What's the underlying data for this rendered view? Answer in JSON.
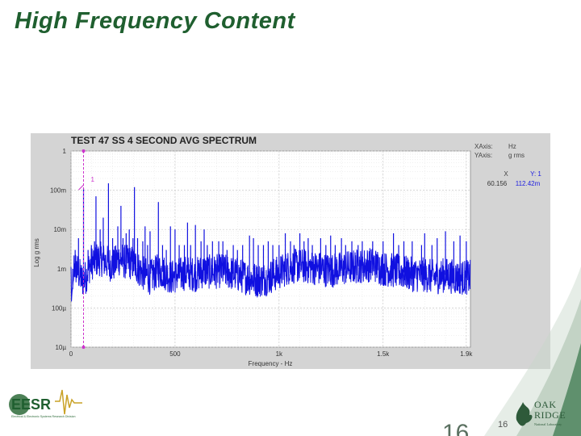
{
  "slide": {
    "title": "High Frequency Content",
    "page_number": "16",
    "page_number_large": "16"
  },
  "logos": {
    "left": {
      "name": "EESR",
      "subtitle": "Electrical & Electronic Systems Research Division",
      "icon": "eesr-logo-waveform"
    },
    "right": {
      "name_line1": "OAK",
      "name_line2": "RIDGE",
      "subtitle": "National Laboratory",
      "icon": "oak-leaf-logo"
    }
  },
  "colors": {
    "title": "#1f5f2f",
    "series": "#1010e0",
    "cursor": "#cc33cc",
    "panel": "#d4d4d4",
    "accent_swoosh": "#3d7a4f"
  },
  "chart_data": {
    "type": "line",
    "title": "TEST 47 SS 4 SECOND AVG SPECTRUM",
    "xlabel": "Frequency - Hz",
    "ylabel": "Log g rms",
    "xscale": "linear",
    "yscale": "log",
    "xlim": [
      0,
      1920
    ],
    "ylim": [
      1e-05,
      1
    ],
    "x_ticks": [
      0,
      500,
      1000,
      1500,
      1900
    ],
    "x_tick_labels": [
      "0",
      "500",
      "1k",
      "1.5k",
      "1.9k"
    ],
    "y_ticks": [
      1,
      0.1,
      0.01,
      0.001,
      0.0001,
      1e-05
    ],
    "y_tick_labels": [
      "1",
      "100m",
      "10m",
      "1m",
      "100µ",
      "10µ"
    ],
    "grid": true,
    "axis_info": {
      "xaxis_label": "XAxis:",
      "xaxis_unit": "Hz",
      "yaxis_label": "YAxis:",
      "yaxis_unit": "g rms"
    },
    "cursor": {
      "marker": "1",
      "x_header": "X",
      "y_header": "Y: 1",
      "x_value": "60.156",
      "y_value": "112.42m",
      "x": 60.156,
      "y": 0.11242
    },
    "series": [
      {
        "color": "#1010e0",
        "baseline_points": [
          [
            0,
            0.0008
          ],
          [
            15,
            0.0012
          ],
          [
            30,
            0.0009
          ],
          [
            55,
            0.0005
          ],
          [
            70,
            0.0006
          ],
          [
            90,
            0.0012
          ],
          [
            110,
            0.0016
          ],
          [
            140,
            0.0018
          ],
          [
            170,
            0.0015
          ],
          [
            200,
            0.0012
          ],
          [
            230,
            0.0018
          ],
          [
            260,
            0.0015
          ],
          [
            300,
            0.0014
          ],
          [
            340,
            0.0008
          ],
          [
            380,
            0.0006
          ],
          [
            420,
            0.0009
          ],
          [
            450,
            0.0008
          ],
          [
            480,
            0.0006
          ],
          [
            520,
            0.0007
          ],
          [
            560,
            0.0008
          ],
          [
            600,
            0.0007
          ],
          [
            640,
            0.0009
          ],
          [
            680,
            0.0008
          ],
          [
            720,
            0.0009
          ],
          [
            760,
            0.0008
          ],
          [
            800,
            0.0007
          ],
          [
            850,
            0.0006
          ],
          [
            900,
            0.0005
          ],
          [
            950,
            0.0006
          ],
          [
            1000,
            0.0008
          ],
          [
            1050,
            0.0011
          ],
          [
            1100,
            0.0012
          ],
          [
            1150,
            0.0011
          ],
          [
            1200,
            0.001
          ],
          [
            1250,
            0.0009
          ],
          [
            1300,
            0.001
          ],
          [
            1350,
            0.0011
          ],
          [
            1400,
            0.0012
          ],
          [
            1450,
            0.0013
          ],
          [
            1500,
            0.001
          ],
          [
            1550,
            0.0009
          ],
          [
            1600,
            0.0008
          ],
          [
            1650,
            0.0007
          ],
          [
            1700,
            0.0007
          ],
          [
            1750,
            0.0006
          ],
          [
            1800,
            0.0007
          ],
          [
            1850,
            0.0006
          ],
          [
            1900,
            0.0006
          ],
          [
            1920,
            0.0006
          ]
        ],
        "peaks": [
          [
            8,
            0.0003
          ],
          [
            20,
            0.003
          ],
          [
            36,
            0.006
          ],
          [
            48,
            0.0009
          ],
          [
            60.156,
            0.11242
          ],
          [
            82,
            0.003
          ],
          [
            98,
            0.004
          ],
          [
            113,
            0.005
          ],
          [
            120,
            0.07
          ],
          [
            140,
            0.01
          ],
          [
            155,
            0.02
          ],
          [
            180,
            0.15
          ],
          [
            200,
            0.006
          ],
          [
            225,
            0.012
          ],
          [
            240,
            0.04
          ],
          [
            250,
            0.006
          ],
          [
            265,
            0.008
          ],
          [
            280,
            0.01
          ],
          [
            298,
            0.006
          ],
          [
            305,
            0.12
          ],
          [
            320,
            0.006
          ],
          [
            345,
            0.005
          ],
          [
            356,
            0.012
          ],
          [
            368,
            0.004
          ],
          [
            380,
            0.009
          ],
          [
            420,
            0.05
          ],
          [
            440,
            0.004
          ],
          [
            458,
            0.003
          ],
          [
            478,
            0.012
          ],
          [
            500,
            0.01
          ],
          [
            520,
            0.004
          ],
          [
            545,
            0.004
          ],
          [
            560,
            0.015
          ],
          [
            575,
            0.004
          ],
          [
            598,
            0.013
          ],
          [
            625,
            0.005
          ],
          [
            640,
            0.01
          ],
          [
            655,
            0.004
          ],
          [
            680,
            0.005
          ],
          [
            710,
            0.005
          ],
          [
            730,
            0.005
          ],
          [
            750,
            0.003
          ],
          [
            780,
            0.004
          ],
          [
            800,
            0.003
          ],
          [
            825,
            0.004
          ],
          [
            858,
            0.007
          ],
          [
            877,
            0.006
          ],
          [
            900,
            0.004
          ],
          [
            925,
            0.004
          ],
          [
            948,
            0.005
          ],
          [
            970,
            0.004
          ],
          [
            1000,
            0.004
          ],
          [
            1030,
            0.008
          ],
          [
            1055,
            0.005
          ],
          [
            1072,
            0.004
          ],
          [
            1100,
            0.008
          ],
          [
            1120,
            0.005
          ],
          [
            1140,
            0.006
          ],
          [
            1160,
            0.004
          ],
          [
            1200,
            0.006
          ],
          [
            1225,
            0.004
          ],
          [
            1248,
            0.007
          ],
          [
            1270,
            0.004
          ],
          [
            1300,
            0.006
          ],
          [
            1320,
            0.004
          ],
          [
            1350,
            0.005
          ],
          [
            1380,
            0.004
          ],
          [
            1400,
            0.005
          ],
          [
            1450,
            0.005
          ],
          [
            1500,
            0.005
          ],
          [
            1550,
            0.008
          ],
          [
            1575,
            0.004
          ],
          [
            1600,
            0.005
          ],
          [
            1640,
            0.005
          ],
          [
            1685,
            0.004
          ],
          [
            1700,
            0.008
          ],
          [
            1735,
            0.004
          ],
          [
            1760,
            0.006
          ],
          [
            1800,
            0.009
          ],
          [
            1840,
            0.005
          ],
          [
            1870,
            0.007
          ],
          [
            1900,
            0.005
          ]
        ]
      }
    ]
  }
}
